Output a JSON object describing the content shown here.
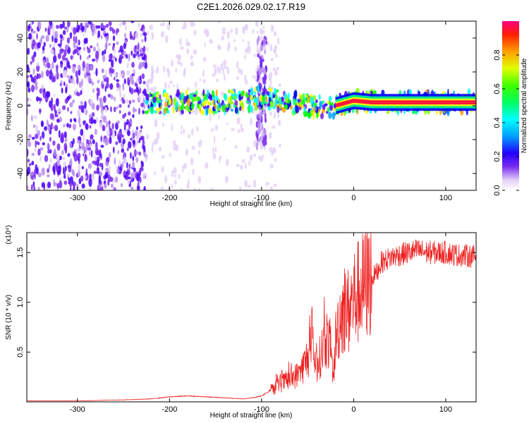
{
  "title": "C2E1.2026.029.02.17.R19",
  "chart_data": [
    {
      "type": "heatmap",
      "xlabel": "Height of straight line (km)",
      "ylabel": "Frequency (Hz)",
      "xlim": [
        -355,
        133
      ],
      "ylim": [
        -50,
        50
      ],
      "xticks": [
        -300,
        -200,
        -100,
        0,
        100
      ],
      "yticks": [
        -40,
        -20,
        0,
        20,
        40
      ],
      "colorbar": {
        "label": "Normalized spectral amplitude",
        "range": [
          0,
          1
        ],
        "ticks": [
          "0.0",
          "0.2",
          "0.4",
          "0.6",
          "0.8"
        ],
        "colors": [
          "#ffffff",
          "#e4d2f7",
          "#b88cf0",
          "#7a2cf0",
          "#4a00ff",
          "#0000ff",
          "#00a0ff",
          "#00ffff",
          "#00ff80",
          "#00ff00",
          "#80ff00",
          "#ffff00",
          "#ffa000",
          "#ff3000",
          "#ff0040",
          "#ff0080"
        ]
      },
      "regions": [
        {
          "x": [
            -355,
            -225
          ],
          "f": [
            -50,
            50
          ],
          "amplitude": 0.18,
          "character": "noise"
        },
        {
          "x": [
            -225,
            -80
          ],
          "f": [
            -50,
            50
          ],
          "amplitude": 0.06,
          "character": "sparse noise"
        },
        {
          "x": [
            -105,
            -95
          ],
          "f": [
            -25,
            40
          ],
          "amplitude": 0.15,
          "character": "burst"
        },
        {
          "x": [
            -225,
            133
          ],
          "f": [
            -6,
            6
          ],
          "amplitude": 0.5,
          "character": "signal band near 0 Hz"
        },
        {
          "x": [
            -20,
            133
          ],
          "f": [
            -1,
            3
          ],
          "amplitude": 0.85,
          "character": "strong carrier"
        }
      ],
      "carrier_track": {
        "x": [
          -230,
          -200,
          -150,
          -120,
          -100,
          -80,
          -60,
          -40,
          -20,
          0,
          20,
          60,
          100,
          133
        ],
        "f": [
          1,
          2,
          2,
          3,
          5,
          3,
          1,
          -1,
          0,
          3,
          2,
          2,
          2,
          2
        ]
      }
    },
    {
      "type": "line",
      "xlabel": "Height of straight line (km)",
      "ylabel": "SNR (10 * v/v)",
      "scale_label": "(x10⁴)",
      "color": "#ee2222",
      "xlim": [
        -355,
        133
      ],
      "ylim": [
        0,
        1.7
      ],
      "xticks": [
        -300,
        -200,
        -100,
        0,
        100
      ],
      "yticks": [
        0.5,
        1.0,
        1.5
      ],
      "series": [
        {
          "x": [
            -355,
            -300,
            -250,
            -220,
            -200,
            -180,
            -160,
            -140,
            -120,
            -110,
            -100,
            -90,
            -80,
            -70,
            -60,
            -55,
            -50,
            -45,
            -40,
            -35,
            -30,
            -25,
            -22,
            -20,
            -15,
            -10,
            -5,
            0,
            5,
            10,
            15,
            20,
            25,
            30,
            40,
            50,
            60,
            70,
            80,
            90,
            100,
            110,
            120,
            133
          ],
          "y": [
            0.01,
            0.01,
            0.02,
            0.03,
            0.05,
            0.06,
            0.05,
            0.04,
            0.03,
            0.04,
            0.06,
            0.12,
            0.18,
            0.22,
            0.28,
            0.35,
            0.45,
            0.55,
            0.35,
            0.5,
            0.65,
            0.55,
            0.2,
            0.6,
            0.85,
            0.95,
            0.9,
            1.05,
            1.1,
            1.15,
            1.2,
            1.25,
            1.3,
            1.4,
            1.45,
            1.48,
            1.5,
            1.52,
            1.5,
            1.5,
            1.5,
            1.48,
            1.47,
            1.46
          ]
        }
      ]
    }
  ]
}
